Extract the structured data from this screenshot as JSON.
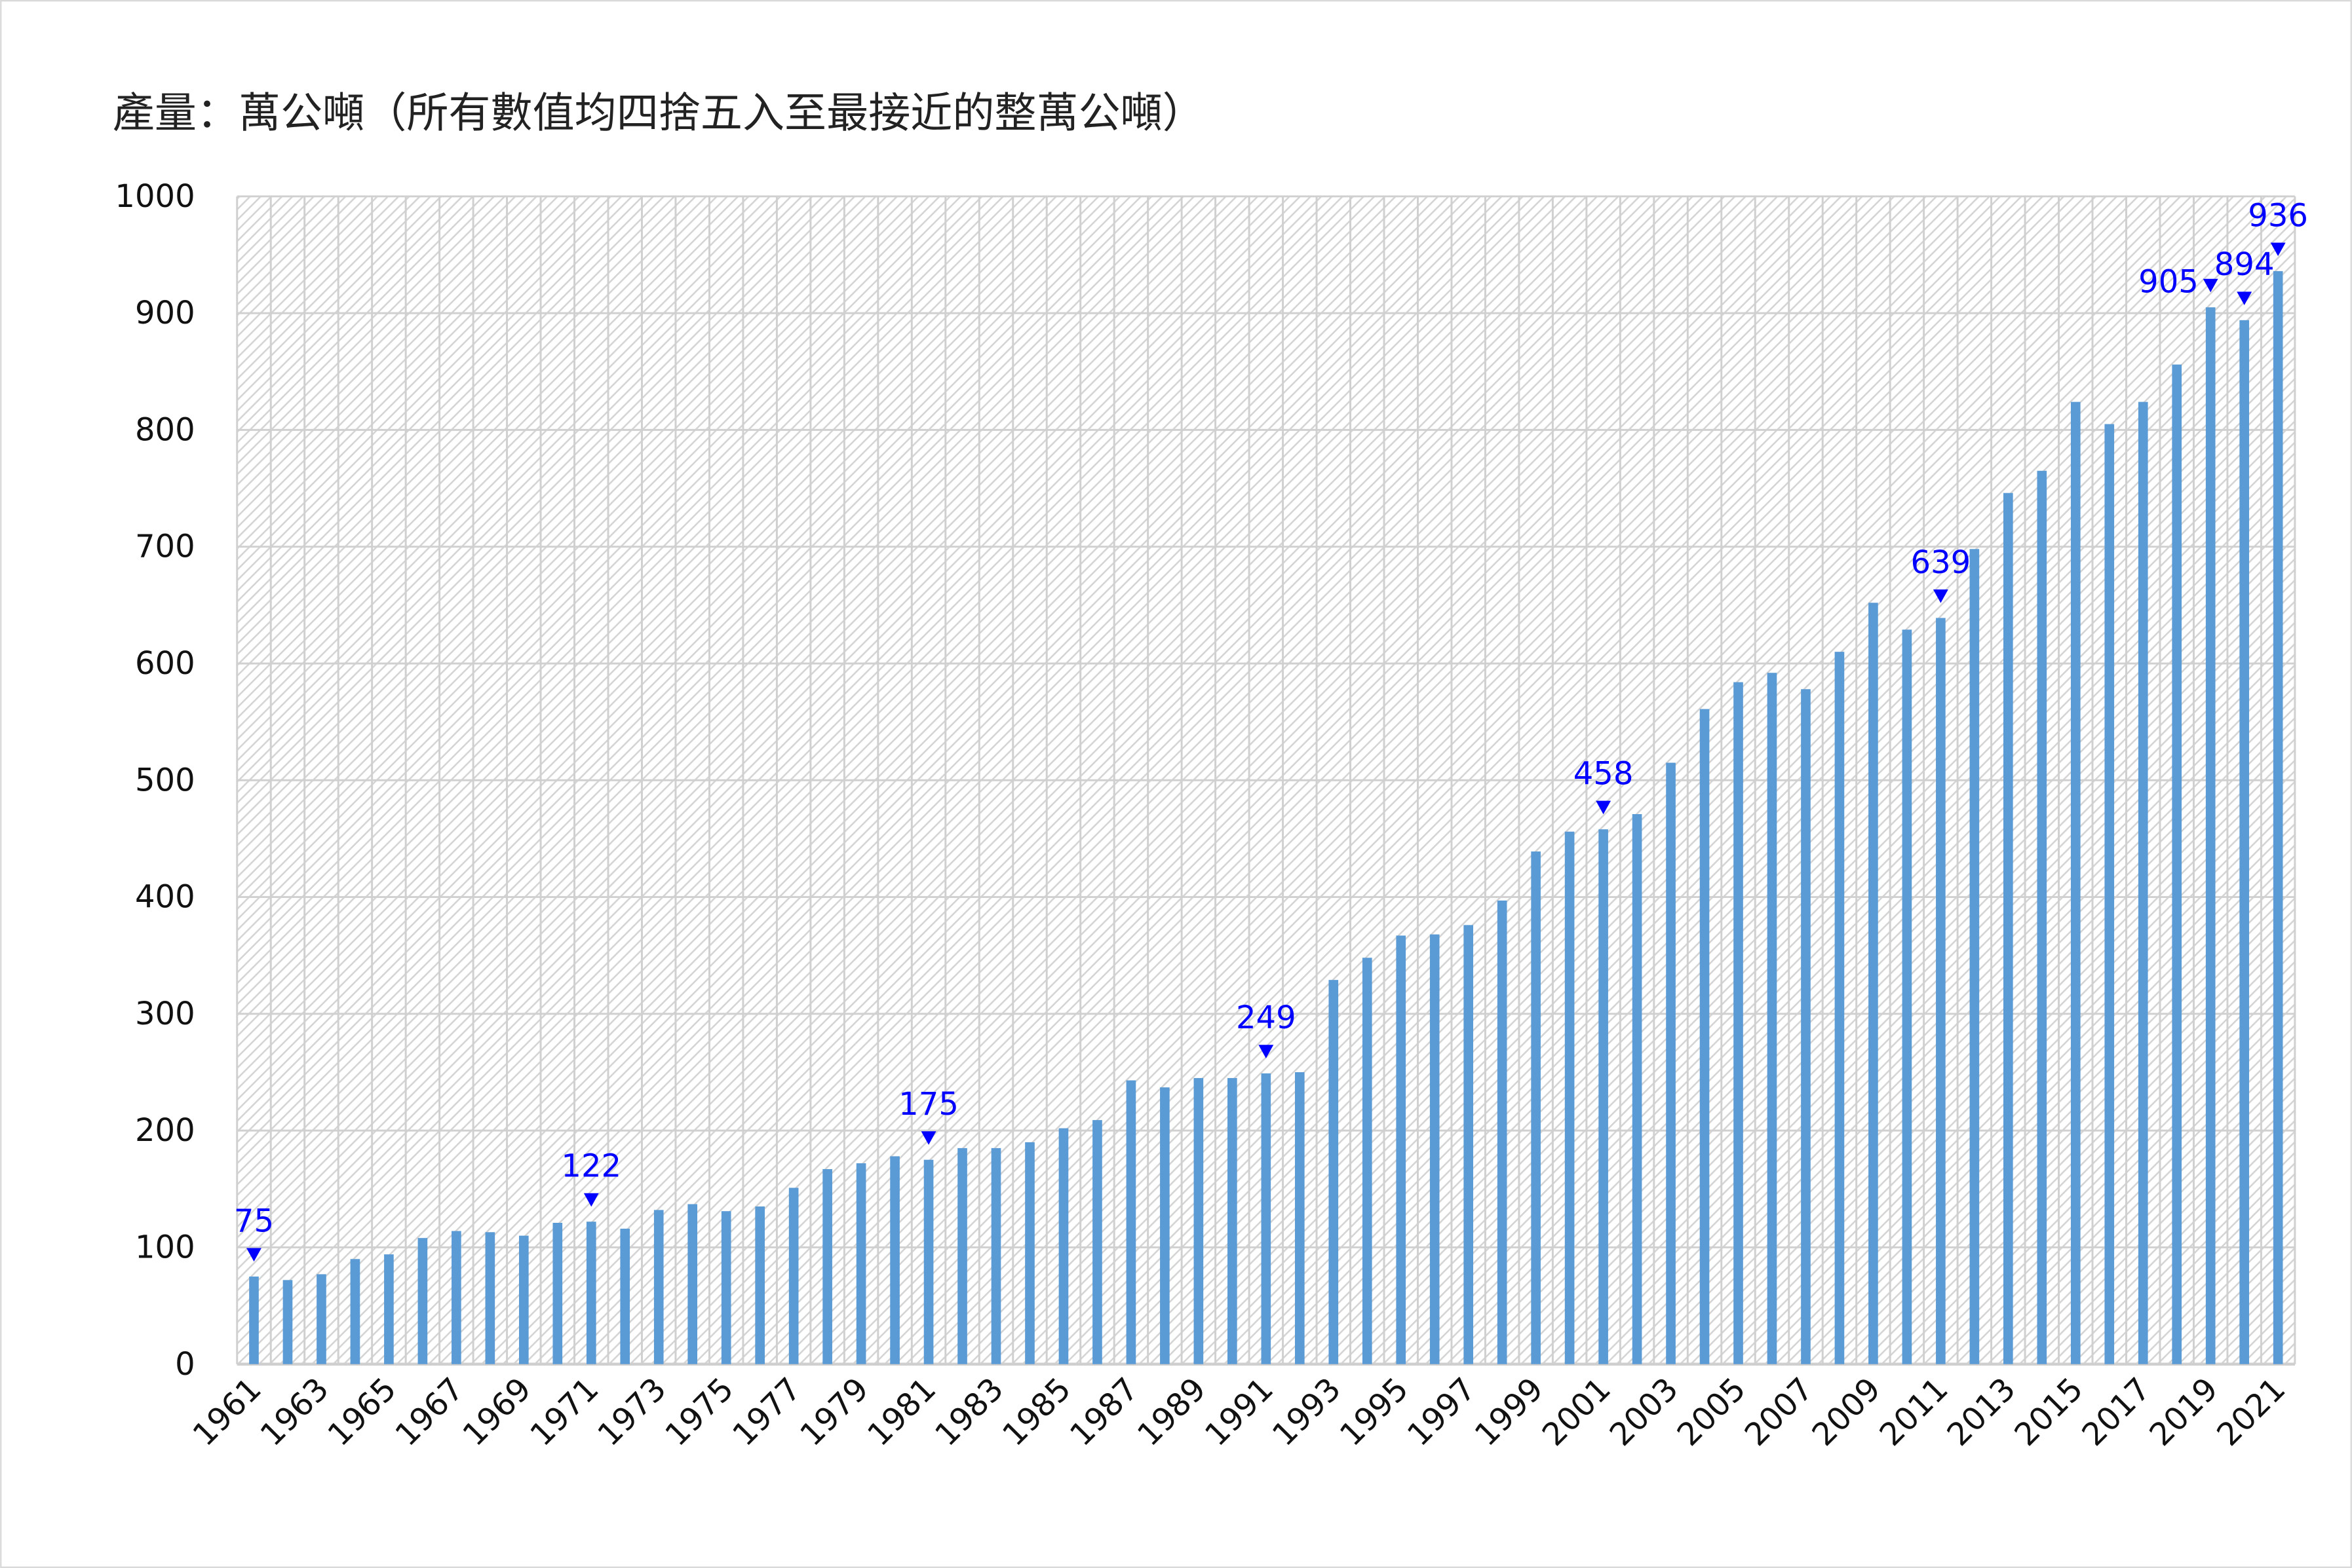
{
  "chart_data": {
    "type": "bar",
    "title": "產量：萬公噸（所有數值均四捨五入至最接近的整萬公噸）",
    "xlabel": "",
    "ylabel": "",
    "ylim": [
      0,
      1000
    ],
    "yticks": [
      0,
      100,
      200,
      300,
      400,
      500,
      600,
      700,
      800,
      900,
      1000
    ],
    "grid": true,
    "bar_color": "#5b9bd5",
    "annotation_color": "#0000ff",
    "categories": [
      "1961",
      "1962",
      "1963",
      "1964",
      "1965",
      "1966",
      "1967",
      "1968",
      "1969",
      "1970",
      "1971",
      "1972",
      "1973",
      "1974",
      "1975",
      "1976",
      "1977",
      "1978",
      "1979",
      "1980",
      "1981",
      "1982",
      "1983",
      "1984",
      "1985",
      "1986",
      "1987",
      "1988",
      "1989",
      "1990",
      "1991",
      "1992",
      "1993",
      "1994",
      "1995",
      "1996",
      "1997",
      "1998",
      "1999",
      "2000",
      "2001",
      "2002",
      "2003",
      "2004",
      "2005",
      "2006",
      "2007",
      "2008",
      "2009",
      "2010",
      "2011",
      "2012",
      "2013",
      "2014",
      "2015",
      "2016",
      "2017",
      "2018",
      "2019",
      "2020",
      "2021"
    ],
    "values": [
      75,
      72,
      77,
      90,
      94,
      108,
      114,
      113,
      110,
      121,
      122,
      116,
      132,
      137,
      131,
      135,
      151,
      167,
      172,
      178,
      175,
      185,
      185,
      190,
      202,
      209,
      243,
      237,
      245,
      245,
      249,
      250,
      329,
      348,
      367,
      368,
      376,
      397,
      439,
      456,
      458,
      471,
      515,
      561,
      584,
      592,
      578,
      610,
      652,
      629,
      639,
      698,
      746,
      765,
      824,
      805,
      824,
      856,
      905,
      894,
      936
    ],
    "annotations": [
      {
        "year": "1961",
        "label": "75",
        "side": "above"
      },
      {
        "year": "1971",
        "label": "122",
        "side": "above"
      },
      {
        "year": "1981",
        "label": "175",
        "side": "above"
      },
      {
        "year": "1991",
        "label": "249",
        "side": "above"
      },
      {
        "year": "2001",
        "label": "458",
        "side": "above"
      },
      {
        "year": "2011",
        "label": "639",
        "side": "above"
      },
      {
        "year": "2019",
        "label": "905",
        "side": "left"
      },
      {
        "year": "2020",
        "label": "894",
        "side": "above"
      },
      {
        "year": "2021",
        "label": "936",
        "side": "above"
      }
    ]
  }
}
